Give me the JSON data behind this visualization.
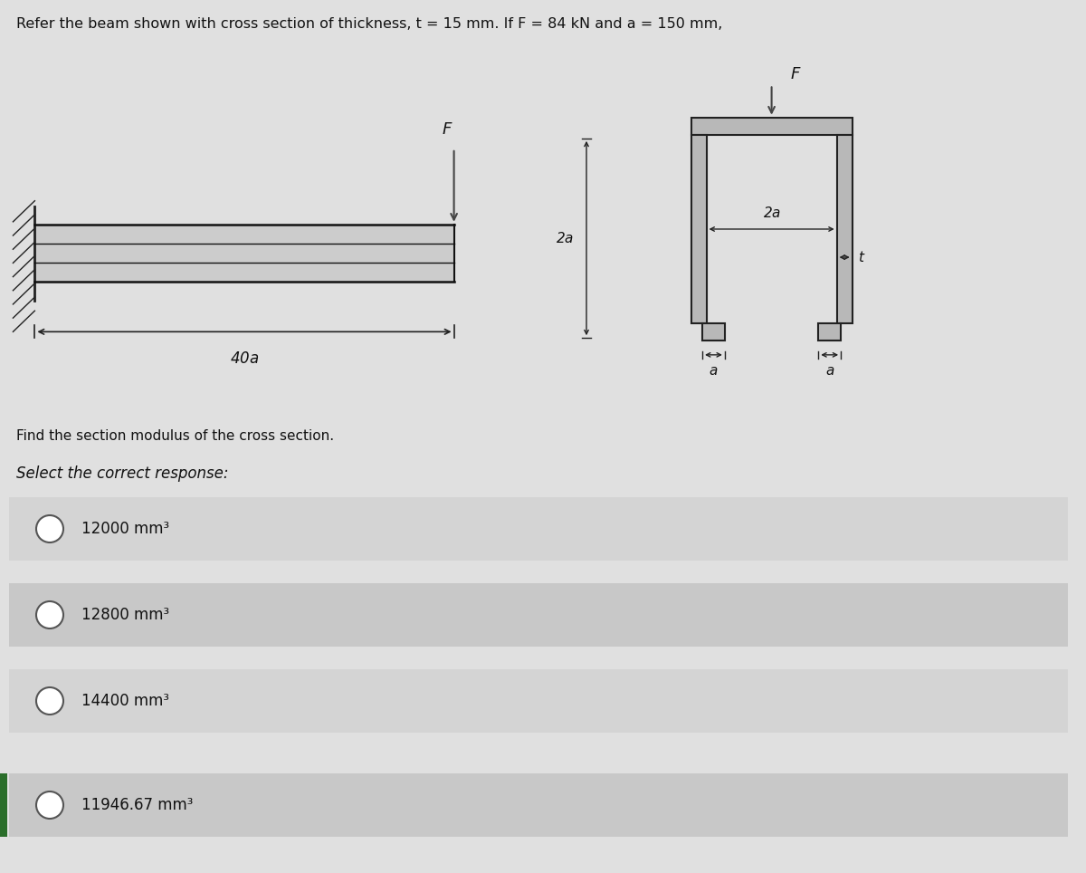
{
  "title_text": "Refer the beam shown with cross section of thickness, t = 15 mm. If F = 84 kN and a = 150 mm,",
  "bg_color": "#e0e0e0",
  "upper_bg": "#d8d8d8",
  "question_text": "Find the section modulus of the cross section.",
  "select_text": "Select the correct response:",
  "options": [
    "12000 mm³",
    "12800 mm³",
    "14400 mm³",
    "11946.67 mm³"
  ],
  "option_bg_colors": [
    "#d4d4d4",
    "#c8c8c8",
    "#d4d4d4",
    "#c8c8c8"
  ],
  "cross_section_fill": "#b8b8b8",
  "cross_section_edge": "#222222",
  "hatch_color": "#222222",
  "arrow_color": "#444444",
  "dim_color": "#222222",
  "text_color": "#111111",
  "green_bar": "#2a6e2a"
}
